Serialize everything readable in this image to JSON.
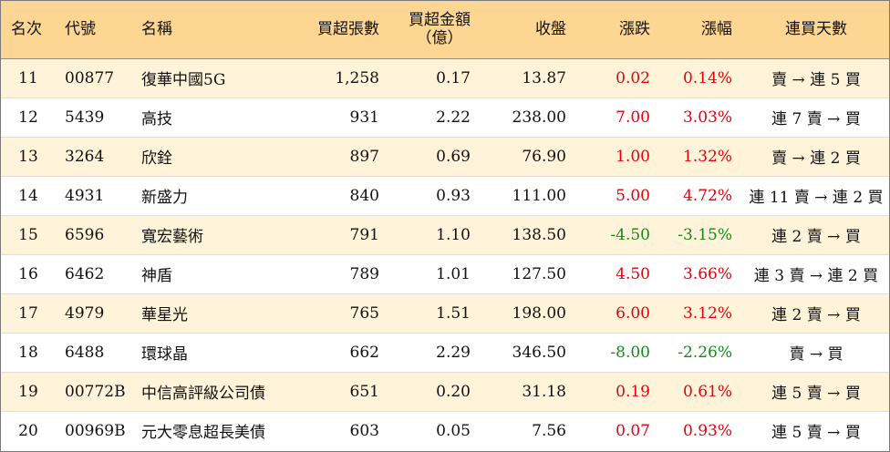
{
  "colors": {
    "header_bg": "#fcd692",
    "alt_row_bg": "#fff3d9",
    "up": "#e8000b",
    "down": "#138a17"
  },
  "headers": {
    "rank": "名次",
    "code": "代號",
    "name": "名稱",
    "net_buy_volume": "買超張數",
    "net_buy_amount_line1": "買超金額",
    "net_buy_amount_line2": "（億）",
    "close": "收盤",
    "change": "漲跌",
    "change_pct": "漲幅",
    "consecutive": "連買天數"
  },
  "rows": [
    {
      "rank": "11",
      "code": "00877",
      "name": "復華中國5G",
      "volume": "1,258",
      "amount": "0.17",
      "close": "13.87",
      "change": "0.02",
      "pct": "0.14%",
      "dir": "up",
      "consecutive": "賣 → 連 5 買"
    },
    {
      "rank": "12",
      "code": "5439",
      "name": "高技",
      "volume": "931",
      "amount": "2.22",
      "close": "238.00",
      "change": "7.00",
      "pct": "3.03%",
      "dir": "up",
      "consecutive": "連 7 賣 → 買"
    },
    {
      "rank": "13",
      "code": "3264",
      "name": "欣銓",
      "volume": "897",
      "amount": "0.69",
      "close": "76.90",
      "change": "1.00",
      "pct": "1.32%",
      "dir": "up",
      "consecutive": "賣 → 連 2 買"
    },
    {
      "rank": "14",
      "code": "4931",
      "name": "新盛力",
      "volume": "840",
      "amount": "0.93",
      "close": "111.00",
      "change": "5.00",
      "pct": "4.72%",
      "dir": "up",
      "consecutive": "連 11 賣 → 連 2 買"
    },
    {
      "rank": "15",
      "code": "6596",
      "name": "寬宏藝術",
      "volume": "791",
      "amount": "1.10",
      "close": "138.50",
      "change": "-4.50",
      "pct": "-3.15%",
      "dir": "down",
      "consecutive": "連 2 賣 → 買"
    },
    {
      "rank": "16",
      "code": "6462",
      "name": "神盾",
      "volume": "789",
      "amount": "1.01",
      "close": "127.50",
      "change": "4.50",
      "pct": "3.66%",
      "dir": "up",
      "consecutive": "連 3 賣 → 連 2 買"
    },
    {
      "rank": "17",
      "code": "4979",
      "name": "華星光",
      "volume": "765",
      "amount": "1.51",
      "close": "198.00",
      "change": "6.00",
      "pct": "3.12%",
      "dir": "up",
      "consecutive": "連 2 賣 → 買"
    },
    {
      "rank": "18",
      "code": "6488",
      "name": "環球晶",
      "volume": "662",
      "amount": "2.29",
      "close": "346.50",
      "change": "-8.00",
      "pct": "-2.26%",
      "dir": "down",
      "consecutive": "賣 → 買"
    },
    {
      "rank": "19",
      "code": "00772B",
      "name": "中信高評級公司債",
      "volume": "651",
      "amount": "0.20",
      "close": "31.18",
      "change": "0.19",
      "pct": "0.61%",
      "dir": "up",
      "consecutive": "連 5 賣 → 買"
    },
    {
      "rank": "20",
      "code": "00969B",
      "name": "元大零息超長美債",
      "volume": "603",
      "amount": "0.05",
      "close": "7.56",
      "change": "0.07",
      "pct": "0.93%",
      "dir": "up",
      "consecutive": "連 5 賣 → 買"
    }
  ]
}
